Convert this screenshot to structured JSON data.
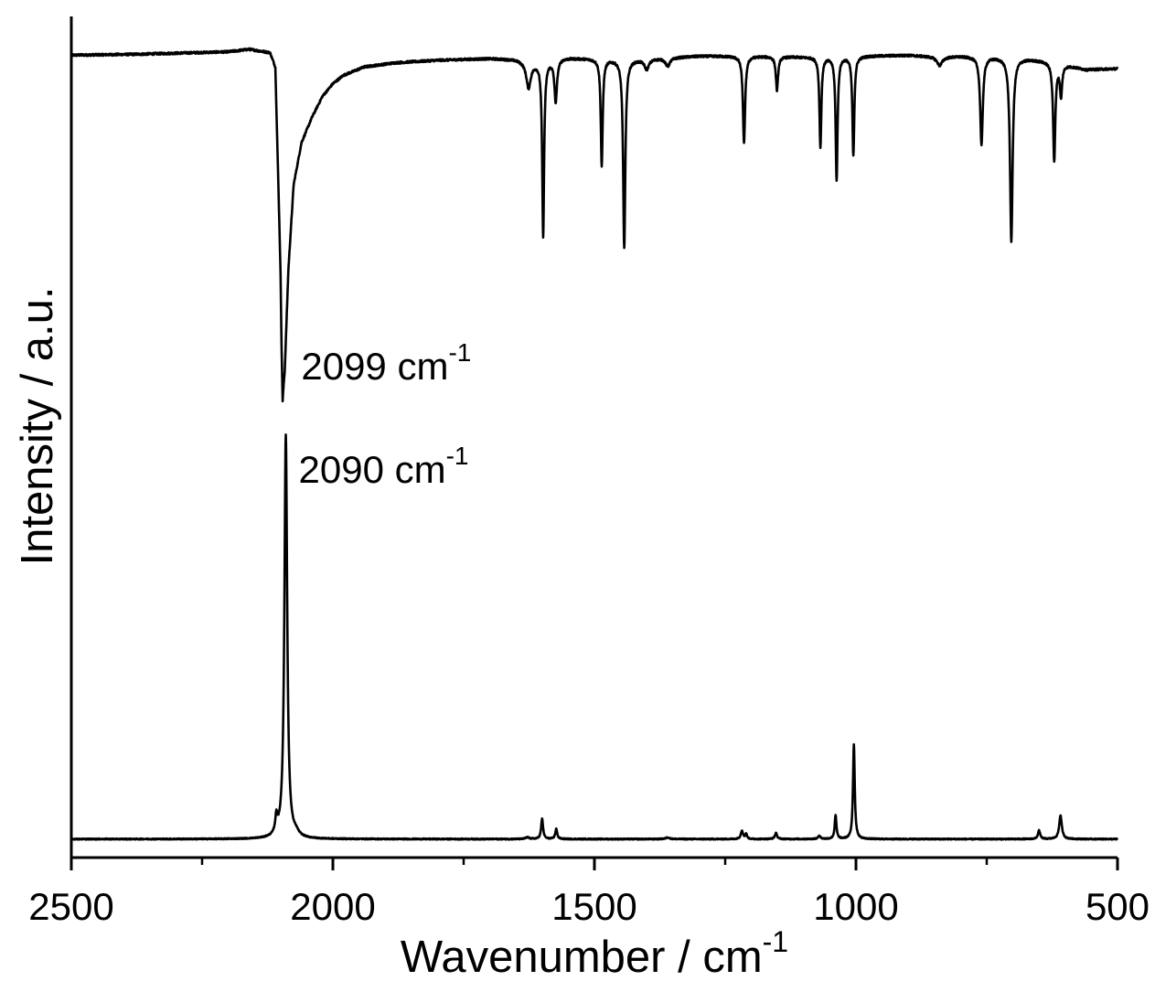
{
  "chart_data": {
    "type": "line",
    "title": "",
    "xlabel": "Wavenumber / cm",
    "xlabel_superscript": "-1",
    "ylabel": "Intensity / a.u.",
    "xlim": [
      2500,
      500
    ],
    "x_reversed": true,
    "yticks_shown": false,
    "grid": false,
    "legend": "none",
    "x_ticks": [
      "2500",
      "2000",
      "1500",
      "1000",
      "500"
    ],
    "x_tick_values": [
      2500,
      2000,
      1500,
      1000,
      500
    ],
    "x_minor_tick_values": [
      2250,
      1750,
      1250,
      750
    ],
    "ylim": [
      0,
      1
    ],
    "series": [
      {
        "style": "transmittance-dips",
        "baseline_points": [
          [
            2500,
            0.954
          ],
          [
            2380,
            0.955
          ],
          [
            2200,
            0.958
          ],
          [
            2160,
            0.961
          ],
          [
            2120,
            0.957
          ],
          [
            2110,
            0.94
          ],
          [
            2100,
            0.7
          ],
          [
            2096,
            0.55
          ],
          [
            2092,
            0.58
          ],
          [
            2085,
            0.7
          ],
          [
            2075,
            0.8
          ],
          [
            2060,
            0.85
          ],
          [
            2040,
            0.88
          ],
          [
            2020,
            0.905
          ],
          [
            2000,
            0.92
          ],
          [
            1980,
            0.93
          ],
          [
            1940,
            0.94
          ],
          [
            1880,
            0.945
          ],
          [
            1800,
            0.948
          ],
          [
            1700,
            0.95
          ],
          [
            1650,
            0.949
          ],
          [
            1620,
            0.945
          ],
          [
            1560,
            0.951
          ],
          [
            1500,
            0.95
          ],
          [
            1420,
            0.949
          ],
          [
            1300,
            0.953
          ],
          [
            1200,
            0.953
          ],
          [
            1100,
            0.952
          ],
          [
            1000,
            0.953
          ],
          [
            900,
            0.954
          ],
          [
            840,
            0.952
          ],
          [
            800,
            0.953
          ],
          [
            700,
            0.952
          ],
          [
            620,
            0.946
          ],
          [
            560,
            0.937
          ],
          [
            500,
            0.938
          ]
        ],
        "peaks": [
          {
            "x": 2099,
            "depth": 0.395,
            "width": 10
          },
          {
            "x": 1626,
            "depth": 0.03,
            "width": 5
          },
          {
            "x": 1598,
            "depth": 0.207,
            "width": 2.2
          },
          {
            "x": 1574,
            "depth": 0.05,
            "width": 3
          },
          {
            "x": 1486,
            "depth": 0.127,
            "width": 2.2
          },
          {
            "x": 1443,
            "depth": 0.225,
            "width": 2.5
          },
          {
            "x": 1400,
            "depth": 0.012,
            "width": 5
          },
          {
            "x": 1360,
            "depth": 0.01,
            "width": 5
          },
          {
            "x": 1214,
            "depth": 0.104,
            "width": 2.5
          },
          {
            "x": 1151,
            "depth": 0.04,
            "width": 2.5
          },
          {
            "x": 1068,
            "depth": 0.107,
            "width": 2.2
          },
          {
            "x": 1037,
            "depth": 0.147,
            "width": 2.2
          },
          {
            "x": 1005,
            "depth": 0.118,
            "width": 2.2
          },
          {
            "x": 840,
            "depth": 0.01,
            "width": 6
          },
          {
            "x": 760,
            "depth": 0.105,
            "width": 3
          },
          {
            "x": 703,
            "depth": 0.219,
            "width": 3
          },
          {
            "x": 621,
            "depth": 0.118,
            "width": 2.5
          },
          {
            "x": 608,
            "depth": 0.038,
            "width": 2.5
          }
        ],
        "annotation": {
          "text": "2099 cm",
          "superscript": "-1",
          "x": 2099,
          "y": 0.555
        }
      },
      {
        "style": "emission-peaks",
        "baseline": 0.022,
        "peaks": [
          {
            "x": 2108,
            "height": 0.02,
            "width": 2.5
          },
          {
            "x": 2090,
            "height": 0.48,
            "width": 3.2
          },
          {
            "x": 2070,
            "height": 0.004,
            "width": 6
          },
          {
            "x": 1628,
            "height": 0.002,
            "width": 4
          },
          {
            "x": 1600,
            "height": 0.024,
            "width": 2.2
          },
          {
            "x": 1573,
            "height": 0.012,
            "width": 2.2
          },
          {
            "x": 1360,
            "height": 0.002,
            "width": 4
          },
          {
            "x": 1218,
            "height": 0.01,
            "width": 2.5
          },
          {
            "x": 1210,
            "height": 0.006,
            "width": 2
          },
          {
            "x": 1153,
            "height": 0.007,
            "width": 2.5
          },
          {
            "x": 1070,
            "height": 0.004,
            "width": 2.5
          },
          {
            "x": 1039,
            "height": 0.028,
            "width": 2
          },
          {
            "x": 1004,
            "height": 0.113,
            "width": 2
          },
          {
            "x": 650,
            "height": 0.01,
            "width": 2.5
          },
          {
            "x": 609,
            "height": 0.028,
            "width": 3
          }
        ],
        "annotation": {
          "text": "2090 cm",
          "superscript": "-1",
          "x": 2090,
          "y": 0.505
        }
      }
    ]
  }
}
